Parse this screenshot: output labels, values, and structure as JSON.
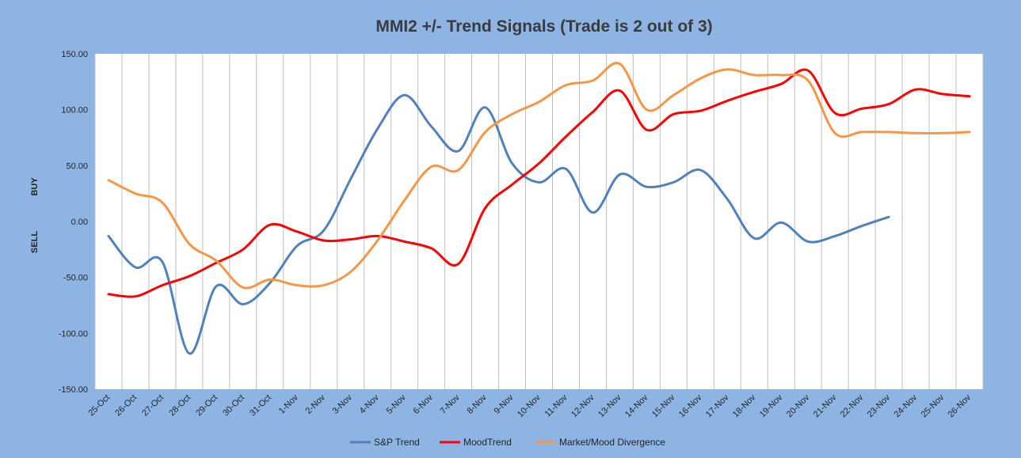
{
  "chart_data": {
    "type": "line",
    "title": "MMI2 +/- Trend Signals (Trade is 2 out of 3)",
    "side_labels": {
      "upper": "BUY",
      "lower": "SELL"
    },
    "ylim": [
      -150,
      150
    ],
    "yticks": [
      "150.00",
      "100.00",
      "50.00",
      "0.00",
      "-50.00",
      "-100.00",
      "-150.00"
    ],
    "ytick_values": [
      150,
      100,
      50,
      0,
      -50,
      -100,
      -150
    ],
    "grid": {
      "vertical": true,
      "horizontal": false
    },
    "legend_position": "bottom",
    "categories": [
      "25-Oct",
      "26-Oct",
      "27-Oct",
      "28-Oct",
      "29-Oct",
      "30-Oct",
      "31-Oct",
      "1-Nov",
      "2-Nov",
      "3-Nov",
      "4-Nov",
      "5-Nov",
      "6-Nov",
      "7-Nov",
      "8-Nov",
      "9-Nov",
      "10-Nov",
      "11-Nov",
      "12-Nov",
      "13-Nov",
      "14-Nov",
      "15-Nov",
      "16-Nov",
      "17-Nov",
      "18-Nov",
      "19-Nov",
      "20-Nov",
      "21-Nov",
      "22-Nov",
      "23-Nov",
      "24-Nov",
      "25-Nov",
      "26-Nov"
    ],
    "series": [
      {
        "name": "S&P Trend",
        "color": "#4F81BD",
        "values": [
          -13,
          -41,
          -36,
          -118,
          -58,
          -74,
          -55,
          -22,
          -8,
          38,
          83,
          113,
          85,
          63,
          102,
          52,
          35,
          47,
          8,
          42,
          31,
          35,
          46,
          20,
          -15,
          -1,
          -18,
          -13,
          -4,
          4,
          null,
          null,
          null
        ]
      },
      {
        "name": "MoodTrend",
        "color": "#FF0000",
        "values": [
          -65,
          -67,
          -57,
          -49,
          -37,
          -25,
          -3,
          -9,
          -17,
          -16,
          -13,
          -18,
          -24,
          -38,
          12,
          33,
          52,
          76,
          98,
          117,
          82,
          96,
          99,
          108,
          116,
          123,
          135,
          97,
          101,
          105,
          118,
          114,
          112
        ]
      },
      {
        "name": "Market/Mood Divergence",
        "color": "#F79646",
        "values": [
          37,
          25,
          17,
          -20,
          -35,
          -59,
          -52,
          -57,
          -57,
          -45,
          -17,
          19,
          49,
          46,
          80,
          96,
          107,
          122,
          126,
          141,
          100,
          113,
          128,
          136,
          131,
          131,
          126,
          79,
          80,
          80,
          79,
          79,
          80
        ]
      }
    ]
  }
}
